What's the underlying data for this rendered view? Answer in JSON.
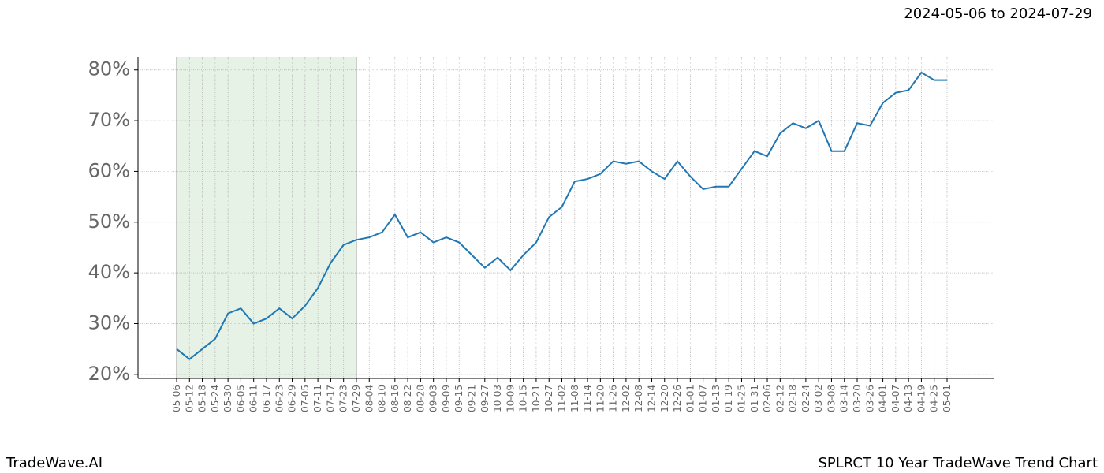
{
  "chart_data": {
    "type": "line",
    "subtitle": "2024-05-06 to 2024-07-29",
    "footer_left": "TradeWave.AI",
    "footer_right": "SPLRCT 10 Year TradeWave Trend Chart",
    "categories": [
      "05-06",
      "05-12",
      "05-18",
      "05-24",
      "05-30",
      "06-05",
      "06-11",
      "06-17",
      "06-23",
      "06-29",
      "07-05",
      "07-11",
      "07-17",
      "07-23",
      "07-29",
      "08-04",
      "08-10",
      "08-16",
      "08-22",
      "08-28",
      "09-03",
      "09-09",
      "09-15",
      "09-21",
      "09-27",
      "10-03",
      "10-09",
      "10-15",
      "10-21",
      "10-27",
      "11-02",
      "11-08",
      "11-14",
      "11-20",
      "11-26",
      "12-02",
      "12-08",
      "12-14",
      "12-20",
      "12-26",
      "01-01",
      "01-07",
      "01-13",
      "01-19",
      "01-25",
      "01-31",
      "02-06",
      "02-12",
      "02-18",
      "02-24",
      "03-02",
      "03-08",
      "03-14",
      "03-20",
      "03-26",
      "04-01",
      "04-07",
      "04-13",
      "04-19",
      "04-25",
      "05-01"
    ],
    "series": [
      {
        "color": "#1f77b4",
        "values": [
          25,
          23,
          25,
          27,
          32,
          33,
          30,
          31,
          33,
          31,
          33.5,
          37,
          42,
          45.5,
          46.5,
          47,
          48,
          51.5,
          47,
          48,
          46,
          47,
          46,
          43.5,
          41,
          43,
          40.5,
          43.5,
          46,
          51,
          53,
          58,
          58.5,
          59.5,
          62,
          61.5,
          62,
          60,
          58.5,
          62,
          59,
          56.5,
          57,
          57,
          60.5,
          64,
          63,
          67.5,
          69.5,
          68.5,
          70,
          64,
          64,
          69.5,
          69,
          73.5,
          75.5,
          76,
          79.5,
          78,
          78
        ]
      }
    ],
    "highlight_range": [
      0,
      14
    ],
    "highlight_color": "#e5f2e5",
    "ylim": [
      19.2,
      82.6
    ],
    "yticks": [
      {
        "value": 20,
        "label": "20%"
      },
      {
        "value": 30,
        "label": "30%"
      },
      {
        "value": 40,
        "label": "40%"
      },
      {
        "value": 50,
        "label": "50%"
      },
      {
        "value": 60,
        "label": "60%"
      },
      {
        "value": 70,
        "label": "70%"
      },
      {
        "value": 80,
        "label": "80%"
      }
    ],
    "grid": true
  }
}
